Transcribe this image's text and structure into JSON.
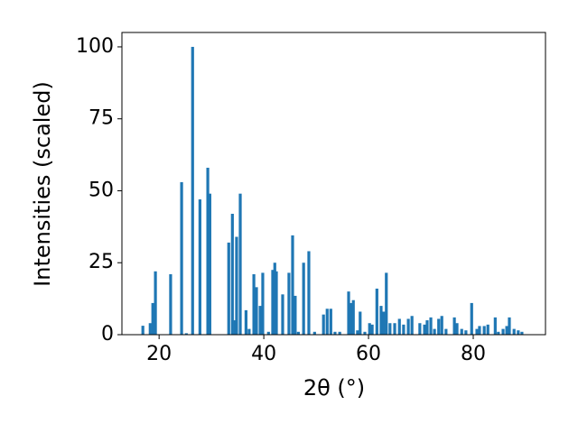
{
  "chart_data": {
    "type": "bar",
    "xlabel": "2θ (°)",
    "ylabel": "Intensities (scaled)",
    "x": [
      16.9,
      18.3,
      18.8,
      19.3,
      22.2,
      24.3,
      25.2,
      26.4,
      27.8,
      29.3,
      29.7,
      33.3,
      34.0,
      34.5,
      34.8,
      35.5,
      36.6,
      37.2,
      38.1,
      38.6,
      39.3,
      39.8,
      40.9,
      41.7,
      42.1,
      42.4,
      43.6,
      44.8,
      45.5,
      46.0,
      46.6,
      47.6,
      48.6,
      49.7,
      51.4,
      52.1,
      52.8,
      53.6,
      54.5,
      56.2,
      56.7,
      57.1,
      57.9,
      58.4,
      59.3,
      60.2,
      60.7,
      61.6,
      62.4,
      62.9,
      63.4,
      64.1,
      65.0,
      65.9,
      66.7,
      67.6,
      68.3,
      69.8,
      70.7,
      71.2,
      71.9,
      72.6,
      73.4,
      74.0,
      74.8,
      76.4,
      76.9,
      77.8,
      78.6,
      79.7,
      80.7,
      81.2,
      82.1,
      82.8,
      84.2,
      84.8,
      85.7,
      86.4,
      86.9,
      87.8,
      88.6,
      89.3
    ],
    "values": [
      3.1,
      4,
      11,
      22,
      21,
      53,
      0.5,
      100,
      47,
      58,
      49,
      32,
      42,
      5,
      34,
      49,
      8.5,
      2,
      21,
      16.5,
      10,
      21.5,
      1,
      22.5,
      25,
      22,
      14,
      21.5,
      34.5,
      13.5,
      1,
      25,
      29,
      1,
      7,
      9,
      9,
      1,
      1,
      15,
      11,
      12,
      1.5,
      8,
      1,
      4,
      3.5,
      16,
      10,
      8,
      21.5,
      4,
      4,
      5.5,
      3.5,
      5.5,
      6.5,
      4,
      3.5,
      5,
      6,
      2,
      5.5,
      6.5,
      2,
      6,
      4,
      2,
      1.5,
      11,
      2,
      3,
      3,
      3.5,
      6,
      1,
      2,
      3,
      6,
      2,
      1.5,
      1
    ],
    "color": "#1f77b4",
    "xlim": [
      12.9,
      93.8
    ],
    "ylim": [
      0,
      105
    ],
    "xticks": [
      20,
      40,
      60,
      80
    ],
    "yticks": [
      0,
      25,
      50,
      75,
      100
    ]
  }
}
